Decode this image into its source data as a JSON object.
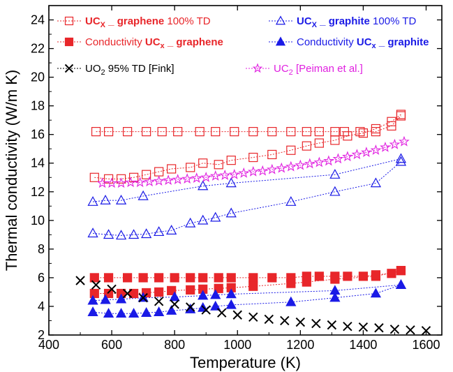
{
  "chart_data": {
    "type": "scatter",
    "xlabel": "Temperature (K)",
    "ylabel": "Thermal conductivity (W/m K)",
    "xlim": [
      400,
      1650
    ],
    "ylim": [
      2,
      25
    ],
    "x_ticks": [
      400,
      600,
      800,
      1000,
      1200,
      1400,
      1600
    ],
    "y_ticks": [
      2,
      4,
      6,
      8,
      10,
      12,
      14,
      16,
      18,
      20,
      22,
      24
    ],
    "grid": false,
    "legend_placement": "top",
    "legend": [
      {
        "prefix": "UC",
        "sub": "X",
        "mid": " _ graphene",
        "suffix": " 100% TD",
        "color": "#e8262a",
        "bold": "prefix-mid"
      },
      {
        "prefix": "Conductivity ",
        "uc": "UC",
        "sub": "x",
        "mid": " _ graphene",
        "suffix": "",
        "color": "#e8262a",
        "bold": "uc-mid"
      },
      {
        "prefix": "UC",
        "sub": "X",
        "mid": " _ graphite",
        "suffix": " 100% TD",
        "color": "#1a1ae6",
        "bold": "prefix-mid"
      },
      {
        "prefix": "Conductivity ",
        "uc": "UC",
        "sub": "x",
        "mid": " _ graphite",
        "suffix": "",
        "color": "#1a1ae6",
        "bold": "uc-mid"
      },
      {
        "prefix": "UO",
        "sub": "2",
        "mid": "",
        "suffix": " 95% TD [Fink]",
        "color": "#000000",
        "bold": "none"
      },
      {
        "prefix": "UC",
        "sub": "2",
        "mid": "",
        "suffix": " [Peiman et al.]",
        "color": "#e020e0",
        "bold": "none"
      }
    ],
    "series": [
      {
        "name": "UCx_graphene 100% TD (upper)",
        "marker": "open-square",
        "color": "#e8262a",
        "x": [
          550,
          590,
          650,
          710,
          760,
          810,
          880,
          930,
          990,
          1050,
          1110,
          1170,
          1220,
          1260,
          1310,
          1340,
          1390,
          1440,
          1490,
          1520
        ],
        "y": [
          16.2,
          16.2,
          16.2,
          16.2,
          16.2,
          16.2,
          16.2,
          16.2,
          16.2,
          16.2,
          16.2,
          16.2,
          16.2,
          16.2,
          16.2,
          16.2,
          16.2,
          16.2,
          16.6,
          17.3
        ]
      },
      {
        "name": "UCx_graphene 100% TD (lower)",
        "marker": "open-square",
        "color": "#e8262a",
        "x": [
          545,
          590,
          630,
          670,
          710,
          750,
          790,
          850,
          890,
          940,
          980,
          1050,
          1110,
          1170,
          1220,
          1260,
          1310,
          1350,
          1400,
          1440,
          1490,
          1520
        ],
        "y": [
          13.0,
          12.9,
          12.9,
          13.0,
          13.2,
          13.4,
          13.6,
          13.7,
          14.0,
          13.9,
          14.2,
          14.4,
          14.6,
          14.9,
          15.2,
          15.4,
          15.6,
          15.9,
          16.1,
          16.4,
          16.9,
          17.4
        ]
      },
      {
        "name": "Conductivity UCx_graphene (upper)",
        "marker": "filled-square",
        "color": "#e8262a",
        "x": [
          545,
          590,
          650,
          700,
          750,
          800,
          850,
          890,
          940,
          980,
          1050,
          1110,
          1170,
          1220,
          1260,
          1310,
          1350,
          1400,
          1440,
          1490,
          1520
        ],
        "y": [
          6.0,
          6.0,
          6.0,
          6.0,
          6.0,
          6.0,
          6.0,
          6.0,
          6.0,
          6.0,
          6.0,
          6.0,
          6.0,
          6.1,
          6.1,
          6.1,
          6.1,
          6.1,
          6.2,
          6.3,
          6.5
        ]
      },
      {
        "name": "Conductivity UCx_graphene (lower)",
        "marker": "filled-square",
        "color": "#e8262a",
        "x": [
          545,
          590,
          630,
          670,
          710,
          750,
          790,
          850,
          890,
          940,
          980,
          1050,
          1170,
          1220,
          1310,
          1440,
          1520
        ],
        "y": [
          4.9,
          4.9,
          4.9,
          4.9,
          4.95,
          5.0,
          5.1,
          5.15,
          5.2,
          5.25,
          5.3,
          5.4,
          5.6,
          5.7,
          5.9,
          6.1,
          6.5
        ]
      },
      {
        "name": "UCx_graphite 100% TD (upper)",
        "marker": "open-triangle",
        "color": "#1a1ae6",
        "x": [
          540,
          580,
          630,
          700,
          890,
          980,
          1310,
          1520
        ],
        "y": [
          11.3,
          11.4,
          11.4,
          11.7,
          12.4,
          12.6,
          13.2,
          14.3
        ]
      },
      {
        "name": "UCx_graphite 100% TD (lower)",
        "marker": "open-triangle",
        "color": "#1a1ae6",
        "x": [
          540,
          590,
          630,
          670,
          710,
          750,
          790,
          850,
          890,
          930,
          980,
          1170,
          1310,
          1440,
          1520
        ],
        "y": [
          9.1,
          9.0,
          8.95,
          9.0,
          9.05,
          9.2,
          9.3,
          9.8,
          10.0,
          10.2,
          10.5,
          11.3,
          12.0,
          12.6,
          14.1
        ]
      },
      {
        "name": "Conductivity UCx_graphite (upper)",
        "marker": "filled-triangle",
        "color": "#1a1ae6",
        "x": [
          540,
          580,
          630,
          700,
          800,
          890,
          930,
          980,
          1310,
          1520
        ],
        "y": [
          4.4,
          4.45,
          4.5,
          4.6,
          4.65,
          4.75,
          4.8,
          4.85,
          5.1,
          5.5
        ]
      },
      {
        "name": "Conductivity UCx_graphite (lower)",
        "marker": "filled-triangle",
        "color": "#1a1ae6",
        "x": [
          540,
          590,
          630,
          670,
          710,
          750,
          790,
          850,
          890,
          930,
          980,
          1170,
          1310,
          1440,
          1520
        ],
        "y": [
          3.6,
          3.5,
          3.5,
          3.5,
          3.55,
          3.6,
          3.7,
          3.8,
          3.9,
          4.0,
          4.1,
          4.3,
          4.6,
          4.9,
          5.5
        ]
      },
      {
        "name": "UO2 95% TD [Fink]",
        "marker": "x",
        "color": "#000000",
        "line": false,
        "x": [
          500,
          550,
          600,
          650,
          700,
          750,
          800,
          850,
          900,
          950,
          1000,
          1050,
          1100,
          1150,
          1200,
          1250,
          1300,
          1350,
          1400,
          1450,
          1500,
          1550,
          1600
        ],
        "y": [
          5.8,
          5.5,
          5.2,
          4.9,
          4.6,
          4.35,
          4.15,
          3.95,
          3.75,
          3.55,
          3.4,
          3.25,
          3.1,
          3.0,
          2.9,
          2.8,
          2.7,
          2.6,
          2.55,
          2.5,
          2.4,
          2.35,
          2.3
        ]
      },
      {
        "name": "UC2 [Peiman et al.]",
        "marker": "open-star",
        "color": "#e020e0",
        "x": [
          570,
          600,
          630,
          660,
          690,
          720,
          750,
          780,
          810,
          840,
          870,
          900,
          930,
          960,
          990,
          1020,
          1050,
          1080,
          1110,
          1140,
          1170,
          1200,
          1230,
          1260,
          1290,
          1320,
          1350,
          1380,
          1410,
          1440,
          1470,
          1500,
          1530
        ],
        "y": [
          12.6,
          12.6,
          12.6,
          12.65,
          12.65,
          12.7,
          12.75,
          12.8,
          12.85,
          12.9,
          12.95,
          13.0,
          13.1,
          13.15,
          13.2,
          13.3,
          13.4,
          13.45,
          13.55,
          13.65,
          13.75,
          13.85,
          13.95,
          14.05,
          14.15,
          14.3,
          14.45,
          14.6,
          14.75,
          14.9,
          15.1,
          15.3,
          15.5
        ]
      }
    ]
  }
}
